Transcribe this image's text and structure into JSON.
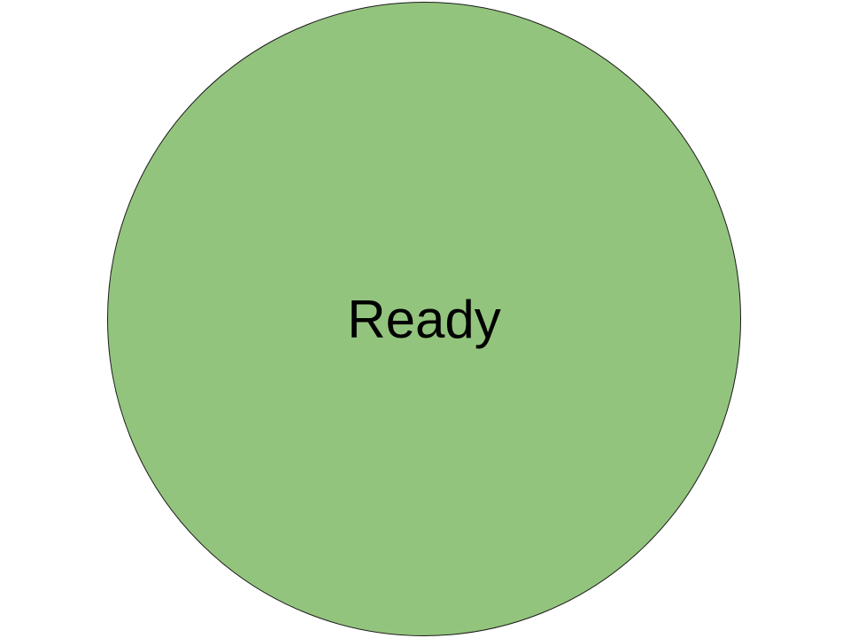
{
  "status": {
    "label": "Ready",
    "fill_color": "#93c47d",
    "border_color": "#1a1a1a",
    "text_color": "#000000"
  },
  "background_color": "#ffffff"
}
